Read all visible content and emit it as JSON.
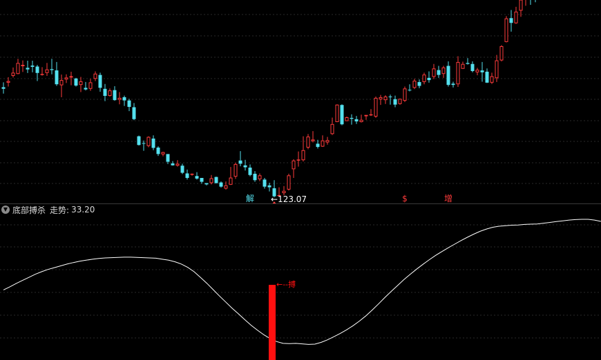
{
  "colors": {
    "up": "#ff3b3b",
    "down": "#54e0ee",
    "grid": "#2a2a2a",
    "trend": "#ffffff",
    "signal_bar": "#ff1010",
    "text": "#ffffff"
  },
  "indicator": {
    "name": "底部搏杀",
    "trend_label": "走势:",
    "trend_value": "33.20",
    "signal_label": "搏"
  },
  "chart_data": [
    {
      "type": "candlestick",
      "price_range": [
        113,
        176
      ],
      "low_annotation": "123.07",
      "markers": [
        {
          "label": "解",
          "color": "#54e0ee",
          "at_index": 51
        },
        {
          "label": "$",
          "color": "#ff3b3b",
          "at_index": 83
        },
        {
          "label": "增",
          "color": "#ff3b3b",
          "at_index": 92
        }
      ],
      "buy_arrow_index": 56,
      "candles": [
        [
          149.0,
          148.5,
          150.5,
          147.0
        ],
        [
          150.4,
          150.9,
          152.1,
          149.2
        ],
        [
          152.5,
          153.5,
          155.1,
          152.0
        ],
        [
          153.1,
          156.5,
          157.8,
          153.0
        ],
        [
          155.5,
          155.9,
          157.3,
          153.7
        ],
        [
          155.0,
          154.5,
          157.2,
          153.4
        ],
        [
          155.7,
          155.3,
          157.2,
          153.6
        ],
        [
          155.4,
          153.4,
          155.9,
          150.9
        ],
        [
          152.8,
          153.1,
          155.2,
          152.6
        ],
        [
          153.4,
          154.5,
          156.5,
          152.5
        ],
        [
          154.6,
          154.3,
          157.8,
          153.0
        ],
        [
          154.2,
          149.9,
          156.8,
          149.4
        ],
        [
          149.6,
          151.2,
          152.9,
          145.9
        ],
        [
          151.4,
          152.0,
          153.0,
          150.3
        ],
        [
          152.0,
          152.4,
          153.8,
          149.6
        ],
        [
          151.7,
          149.5,
          151.9,
          149.2
        ],
        [
          149.7,
          150.8,
          152.2,
          147.5
        ],
        [
          148.8,
          148.3,
          150.6,
          148.0
        ],
        [
          148.5,
          150.5,
          151.6,
          147.9
        ],
        [
          151.6,
          153.2,
          153.9,
          150.9
        ],
        [
          152.8,
          148.8,
          153.5,
          147.6
        ],
        [
          148.5,
          146.3,
          150.0,
          144.7
        ],
        [
          146.3,
          148.0,
          148.6,
          146.1
        ],
        [
          148.1,
          145.0,
          149.3,
          144.8
        ],
        [
          145.1,
          145.7,
          147.5,
          143.7
        ],
        [
          145.9,
          144.9,
          146.4,
          143.2
        ],
        [
          144.9,
          142.9,
          145.4,
          141.6
        ],
        [
          142.8,
          139.1,
          144.1,
          138.8
        ],
        [
          133.8,
          131.1,
          134.0,
          130.9
        ],
        [
          131.7,
          131.5,
          132.5,
          129.3
        ],
        [
          130.8,
          133.6,
          133.8,
          130.4
        ],
        [
          133.1,
          130.2,
          134.1,
          129.5
        ],
        [
          130.3,
          128.3,
          130.7,
          127.7
        ],
        [
          128.2,
          128.9,
          129.0,
          127.6
        ],
        [
          128.3,
          125.9,
          128.3,
          125.2
        ],
        [
          125.4,
          124.8,
          126.1,
          124.7
        ],
        [
          124.7,
          125.3,
          126.4,
          124.4
        ],
        [
          124.7,
          122.5,
          125.3,
          122.1
        ],
        [
          122.3,
          120.9,
          123.5,
          120.4
        ],
        [
          122.2,
          122.2,
          122.3,
          121.6
        ],
        [
          121.5,
          120.7,
          122.7,
          120.4
        ],
        [
          120.9,
          119.7,
          120.9,
          119.1
        ],
        [
          119.3,
          118.9,
          119.3,
          118.6
        ],
        [
          119.3,
          120.8,
          121.8,
          118.9
        ],
        [
          121.2,
          119.3,
          121.3,
          119.2
        ],
        [
          119.5,
          118.2,
          119.8,
          117.9
        ],
        [
          117.6,
          118.6,
          119.8,
          117.3
        ],
        [
          118.8,
          121.0,
          124.3,
          118.7
        ],
        [
          121.3,
          125.2,
          125.6,
          120.6
        ],
        [
          126.3,
          125.3,
          129.2,
          124.5
        ],
        [
          124.8,
          124.2,
          126.5,
          123.2
        ],
        [
          124.1,
          121.8,
          125.1,
          121.4
        ],
        [
          122.2,
          120.2,
          123.0,
          119.7
        ],
        [
          120.5,
          121.7,
          122.3,
          119.9
        ],
        [
          120.4,
          118.2,
          120.9,
          117.6
        ],
        [
          118.6,
          118.0,
          119.4,
          116.7
        ],
        [
          117.7,
          115.2,
          120.2,
          114.9
        ],
        [
          115.3,
          115.6,
          118.0,
          115.1
        ],
        [
          116.2,
          116.9,
          118.4,
          115.5
        ],
        [
          117.3,
          121.7,
          122.2,
          117.0
        ],
        [
          123.6,
          126.3,
          126.7,
          120.9
        ],
        [
          126.5,
          126.6,
          129.1,
          124.4
        ],
        [
          126.4,
          129.5,
          133.8,
          126.0
        ],
        [
          130.3,
          133.7,
          134.5,
          129.8
        ],
        [
          132.3,
          132.8,
          135.4,
          131.9
        ],
        [
          131.5,
          130.5,
          132.7,
          130.0
        ],
        [
          130.6,
          132.5,
          134.1,
          130.5
        ],
        [
          131.9,
          132.6,
          133.6,
          131.2
        ],
        [
          134.5,
          137.6,
          139.6,
          134.2
        ],
        [
          138.2,
          143.6,
          143.7,
          138.2
        ],
        [
          143.5,
          137.5,
          143.7,
          137.2
        ],
        [
          138.5,
          139.7,
          139.9,
          138.5
        ],
        [
          139.5,
          139.2,
          140.6,
          137.4
        ],
        [
          139.1,
          138.4,
          140.1,
          137.6
        ],
        [
          138.2,
          138.9,
          140.5,
          138.1
        ],
        [
          140.0,
          140.4,
          140.4,
          138.9
        ],
        [
          140.4,
          140.6,
          142.2,
          140.1
        ],
        [
          139.9,
          145.7,
          146.1,
          139.5
        ],
        [
          145.2,
          145.9,
          146.6,
          143.5
        ],
        [
          145.0,
          146.1,
          146.5,
          143.8
        ],
        [
          146.1,
          145.9,
          146.7,
          143.6
        ],
        [
          145.3,
          143.6,
          146.4,
          142.8
        ],
        [
          143.8,
          145.4,
          145.5,
          143.6
        ],
        [
          144.8,
          148.6,
          149.2,
          144.4
        ],
        [
          148.2,
          148.0,
          149.9,
          147.7
        ],
        [
          148.8,
          151.0,
          151.6,
          148.4
        ],
        [
          150.6,
          149.4,
          151.4,
          148.7
        ],
        [
          150.6,
          152.9,
          153.5,
          149.9
        ],
        [
          151.9,
          151.2,
          153.9,
          150.4
        ],
        [
          152.2,
          154.8,
          156.2,
          151.5
        ],
        [
          154.3,
          152.8,
          155.6,
          151.9
        ],
        [
          153.1,
          155.1,
          155.6,
          151.9
        ],
        [
          155.6,
          149.7,
          157.0,
          149.2
        ],
        [
          150.1,
          149.7,
          150.7,
          148.9
        ],
        [
          149.9,
          156.8,
          158.6,
          149.1
        ],
        [
          154.7,
          156.2,
          156.9,
          155.4
        ],
        [
          156.5,
          156.2,
          158.0,
          156.0
        ],
        [
          156.2,
          154.0,
          157.0,
          153.6
        ],
        [
          153.6,
          154.4,
          155.0,
          152.7
        ],
        [
          154.2,
          153.6,
          156.8,
          150.7
        ],
        [
          153.8,
          150.4,
          154.8,
          150.3
        ],
        [
          150.4,
          152.4,
          153.5,
          150.0
        ],
        [
          151.8,
          157.3,
          159.0,
          150.6
        ],
        [
          157.3,
          161.7,
          162.0,
          157.0
        ],
        [
          163.0,
          170.3,
          171.0,
          162.9
        ],
        [
          170.4,
          168.9,
          172.9,
          166.2
        ],
        [
          168.8,
          172.4,
          173.9,
          168.6
        ],
        [
          172.7,
          176.1,
          176.8,
          170.8
        ],
        [
          176.2,
          176.6,
          177.3,
          174.2
        ],
        [
          177.1,
          176.2,
          178.8,
          174.5
        ],
        [
          178.0,
          176.5,
          179.7,
          175.3
        ],
        [
          177.5,
          178.1,
          181.0,
          177.4
        ]
      ]
    },
    {
      "type": "line",
      "series": [
        {
          "values": [
            35.2,
            36.4,
            37.7,
            38.9,
            40.1,
            41.3,
            42.3,
            43.2,
            43.9,
            44.6,
            45.3,
            45.9,
            46.4,
            46.8,
            47.2,
            47.5,
            47.7,
            47.8,
            47.9,
            48.0,
            48.0,
            47.9,
            47.8,
            47.7,
            47.6,
            47.2,
            46.8,
            46.2,
            45.3,
            44.0,
            42.3,
            40.1,
            37.8,
            35.3,
            32.8,
            30.4,
            28.0,
            25.8,
            23.5,
            21.3,
            19.4,
            17.6,
            16.1,
            15.0,
            14.3,
            14.2,
            14.3,
            14.1,
            13.9,
            14.0,
            14.7,
            15.7,
            16.9,
            18.2,
            19.6,
            21.2,
            23.0,
            25.0,
            27.3,
            29.7,
            32.2,
            34.6,
            36.9,
            39.2,
            41.3,
            43.3,
            45.2,
            47.0,
            48.7,
            50.2,
            51.7,
            53.1,
            54.5,
            55.8,
            57.0,
            58.1,
            59.0,
            59.7,
            60.1,
            60.3,
            60.5,
            60.6,
            60.8,
            60.9,
            61.0,
            61.3,
            61.6,
            61.9,
            62.2,
            62.5,
            62.7,
            62.8,
            62.8,
            62.5,
            62.0
          ]
        }
      ]
    }
  ]
}
